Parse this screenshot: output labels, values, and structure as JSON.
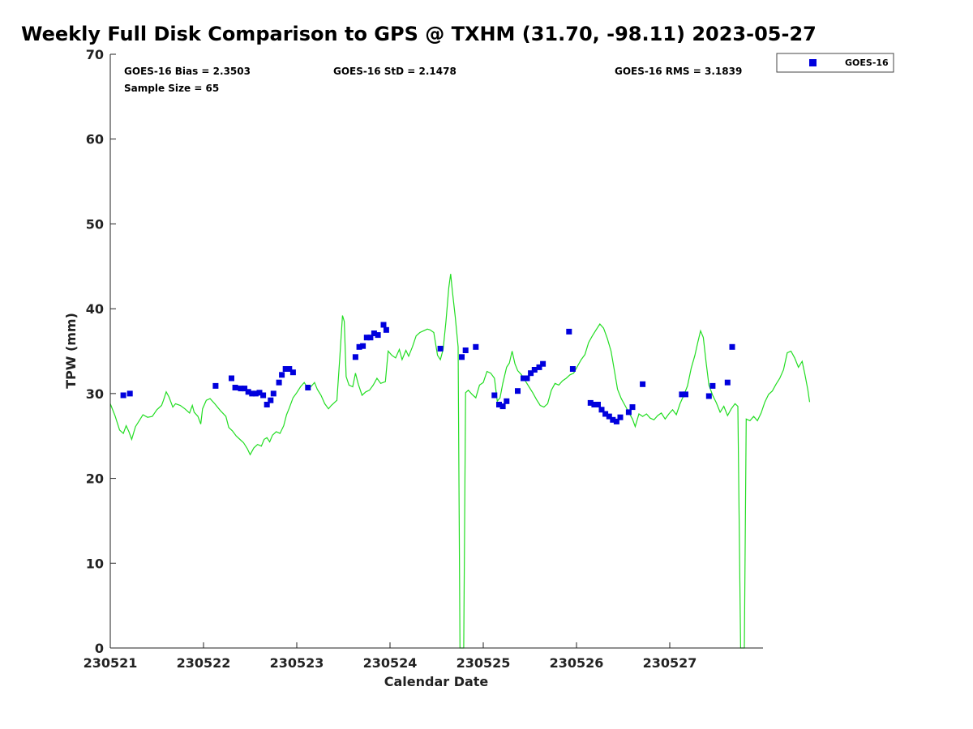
{
  "chart_data": {
    "type": "scatter",
    "title": "Weekly Full Disk Comparison to GPS @ TXHM (31.70, -98.11) 2023-05-27",
    "xlabel": "Calendar Date",
    "ylabel": "TPW (mm)",
    "xlim": [
      0,
      7
    ],
    "ylim": [
      0,
      70
    ],
    "x_ticks": [
      {
        "value": 0,
        "label": "230521"
      },
      {
        "value": 1,
        "label": "230522"
      },
      {
        "value": 2,
        "label": "230523"
      },
      {
        "value": 3,
        "label": "230524"
      },
      {
        "value": 4,
        "label": "230525"
      },
      {
        "value": 5,
        "label": "230526"
      },
      {
        "value": 6,
        "label": "230527"
      }
    ],
    "y_ticks": [
      0,
      10,
      20,
      30,
      40,
      50,
      60,
      70
    ],
    "grid": false,
    "legend": {
      "position": "outside-top-right",
      "entries": [
        "GOES-16"
      ]
    },
    "stats": {
      "bias": "GOES-16 Bias = 2.3503",
      "std": "GOES-16 StD = 2.1478",
      "rms": "GOES-16 RMS = 3.1839",
      "sample": "Sample Size = 65"
    },
    "series": [
      {
        "name": "GOES-16",
        "kind": "scatter",
        "color": "#0000dd",
        "points": [
          [
            0.14,
            29.8
          ],
          [
            0.21,
            30.0
          ],
          [
            1.13,
            30.9
          ],
          [
            1.3,
            31.8
          ],
          [
            1.34,
            30.7
          ],
          [
            1.4,
            30.6
          ],
          [
            1.44,
            30.6
          ],
          [
            1.48,
            30.2
          ],
          [
            1.52,
            30.0
          ],
          [
            1.56,
            30.0
          ],
          [
            1.6,
            30.1
          ],
          [
            1.64,
            29.8
          ],
          [
            1.68,
            28.7
          ],
          [
            1.72,
            29.2
          ],
          [
            1.75,
            30.0
          ],
          [
            1.81,
            31.3
          ],
          [
            1.84,
            32.2
          ],
          [
            1.88,
            32.9
          ],
          [
            1.92,
            32.9
          ],
          [
            1.96,
            32.5
          ],
          [
            2.12,
            30.7
          ],
          [
            2.63,
            34.3
          ],
          [
            2.67,
            35.5
          ],
          [
            2.71,
            35.6
          ],
          [
            2.75,
            36.6
          ],
          [
            2.79,
            36.6
          ],
          [
            2.83,
            37.1
          ],
          [
            2.87,
            36.9
          ],
          [
            2.93,
            38.1
          ],
          [
            2.96,
            37.5
          ],
          [
            3.54,
            35.3
          ],
          [
            3.77,
            34.3
          ],
          [
            3.81,
            35.1
          ],
          [
            3.92,
            35.5
          ],
          [
            4.12,
            29.8
          ],
          [
            4.17,
            28.7
          ],
          [
            4.21,
            28.5
          ],
          [
            4.25,
            29.1
          ],
          [
            4.37,
            30.3
          ],
          [
            4.43,
            31.8
          ],
          [
            4.47,
            31.8
          ],
          [
            4.51,
            32.4
          ],
          [
            4.55,
            32.8
          ],
          [
            4.6,
            33.1
          ],
          [
            4.64,
            33.5
          ],
          [
            4.92,
            37.3
          ],
          [
            4.96,
            32.9
          ],
          [
            5.15,
            28.9
          ],
          [
            5.19,
            28.7
          ],
          [
            5.23,
            28.7
          ],
          [
            5.27,
            28.1
          ],
          [
            5.31,
            27.6
          ],
          [
            5.35,
            27.3
          ],
          [
            5.39,
            26.9
          ],
          [
            5.43,
            26.7
          ],
          [
            5.47,
            27.2
          ],
          [
            5.56,
            27.8
          ],
          [
            5.6,
            28.4
          ],
          [
            5.71,
            31.1
          ],
          [
            6.13,
            29.9
          ],
          [
            6.17,
            29.9
          ],
          [
            6.42,
            29.7
          ],
          [
            6.46,
            30.9
          ],
          [
            6.62,
            31.3
          ],
          [
            6.67,
            35.5
          ]
        ]
      },
      {
        "name": "GPS",
        "kind": "line",
        "color": "#22dd22",
        "points": [
          [
            0.0,
            28.8
          ],
          [
            0.05,
            27.4
          ],
          [
            0.1,
            25.7
          ],
          [
            0.14,
            25.3
          ],
          [
            0.17,
            26.2
          ],
          [
            0.2,
            25.5
          ],
          [
            0.23,
            24.6
          ],
          [
            0.27,
            26.1
          ],
          [
            0.31,
            26.8
          ],
          [
            0.35,
            27.5
          ],
          [
            0.4,
            27.2
          ],
          [
            0.45,
            27.3
          ],
          [
            0.5,
            28.1
          ],
          [
            0.55,
            28.6
          ],
          [
            0.57,
            29.2
          ],
          [
            0.6,
            30.2
          ],
          [
            0.63,
            29.6
          ],
          [
            0.67,
            28.4
          ],
          [
            0.7,
            28.8
          ],
          [
            0.75,
            28.6
          ],
          [
            0.8,
            28.2
          ],
          [
            0.85,
            27.7
          ],
          [
            0.88,
            28.6
          ],
          [
            0.9,
            27.8
          ],
          [
            0.94,
            27.3
          ],
          [
            0.97,
            26.4
          ],
          [
            0.99,
            28.2
          ],
          [
            1.03,
            29.2
          ],
          [
            1.07,
            29.4
          ],
          [
            1.12,
            28.8
          ],
          [
            1.18,
            28.0
          ],
          [
            1.24,
            27.3
          ],
          [
            1.27,
            26.0
          ],
          [
            1.31,
            25.6
          ],
          [
            1.35,
            25.0
          ],
          [
            1.4,
            24.5
          ],
          [
            1.43,
            24.2
          ],
          [
            1.47,
            23.5
          ],
          [
            1.5,
            22.8
          ],
          [
            1.54,
            23.6
          ],
          [
            1.58,
            24.0
          ],
          [
            1.62,
            23.8
          ],
          [
            1.65,
            24.6
          ],
          [
            1.68,
            24.8
          ],
          [
            1.71,
            24.3
          ],
          [
            1.74,
            25.1
          ],
          [
            1.78,
            25.5
          ],
          [
            1.82,
            25.3
          ],
          [
            1.86,
            26.2
          ],
          [
            1.89,
            27.5
          ],
          [
            1.92,
            28.3
          ],
          [
            1.96,
            29.5
          ],
          [
            2.0,
            30.1
          ],
          [
            2.04,
            30.8
          ],
          [
            2.08,
            31.3
          ],
          [
            2.12,
            30.6
          ],
          [
            2.15,
            30.8
          ],
          [
            2.19,
            31.3
          ],
          [
            2.22,
            30.5
          ],
          [
            2.26,
            29.8
          ],
          [
            2.3,
            28.8
          ],
          [
            2.34,
            28.2
          ],
          [
            2.37,
            28.6
          ],
          [
            2.4,
            28.9
          ],
          [
            2.43,
            29.2
          ],
          [
            2.46,
            34.0
          ],
          [
            2.49,
            39.2
          ],
          [
            2.51,
            38.5
          ],
          [
            2.53,
            32.0
          ],
          [
            2.56,
            31.0
          ],
          [
            2.6,
            30.8
          ],
          [
            2.63,
            32.4
          ],
          [
            2.66,
            31.1
          ],
          [
            2.7,
            29.8
          ],
          [
            2.74,
            30.2
          ],
          [
            2.78,
            30.4
          ],
          [
            2.82,
            31.0
          ],
          [
            2.86,
            31.8
          ],
          [
            2.9,
            31.2
          ],
          [
            2.95,
            31.4
          ],
          [
            2.98,
            35.0
          ],
          [
            3.02,
            34.5
          ],
          [
            3.06,
            34.2
          ],
          [
            3.1,
            35.2
          ],
          [
            3.13,
            34.0
          ],
          [
            3.17,
            35.1
          ],
          [
            3.2,
            34.4
          ],
          [
            3.24,
            35.5
          ],
          [
            3.28,
            36.8
          ],
          [
            3.32,
            37.2
          ],
          [
            3.36,
            37.4
          ],
          [
            3.4,
            37.6
          ],
          [
            3.43,
            37.5
          ],
          [
            3.47,
            37.2
          ],
          [
            3.51,
            34.5
          ],
          [
            3.54,
            34.0
          ],
          [
            3.57,
            35.2
          ],
          [
            3.6,
            38.5
          ],
          [
            3.63,
            42.5
          ],
          [
            3.65,
            44.1
          ],
          [
            3.67,
            42.0
          ],
          [
            3.7,
            39.0
          ],
          [
            3.73,
            35.5
          ],
          [
            3.75,
            0.0
          ],
          [
            3.79,
            0.0
          ],
          [
            3.81,
            30.1
          ],
          [
            3.84,
            30.4
          ],
          [
            3.88,
            29.9
          ],
          [
            3.92,
            29.5
          ],
          [
            3.96,
            31.0
          ],
          [
            4.0,
            31.3
          ],
          [
            4.04,
            32.6
          ],
          [
            4.08,
            32.4
          ],
          [
            4.12,
            31.8
          ],
          [
            4.15,
            29.1
          ],
          [
            4.18,
            29.5
          ],
          [
            4.21,
            31.2
          ],
          [
            4.25,
            33.1
          ],
          [
            4.28,
            33.6
          ],
          [
            4.31,
            35.0
          ],
          [
            4.34,
            33.5
          ],
          [
            4.37,
            32.7
          ],
          [
            4.41,
            32.2
          ],
          [
            4.45,
            31.5
          ],
          [
            4.49,
            30.8
          ],
          [
            4.53,
            30.1
          ],
          [
            4.57,
            29.3
          ],
          [
            4.61,
            28.6
          ],
          [
            4.65,
            28.4
          ],
          [
            4.69,
            28.8
          ],
          [
            4.73,
            30.4
          ],
          [
            4.77,
            31.2
          ],
          [
            4.81,
            31.0
          ],
          [
            4.85,
            31.5
          ],
          [
            4.89,
            31.8
          ],
          [
            4.93,
            32.2
          ],
          [
            4.97,
            32.4
          ],
          [
            5.01,
            33.2
          ],
          [
            5.05,
            34.0
          ],
          [
            5.09,
            34.6
          ],
          [
            5.13,
            36.0
          ],
          [
            5.17,
            36.8
          ],
          [
            5.21,
            37.5
          ],
          [
            5.25,
            38.2
          ],
          [
            5.29,
            37.7
          ],
          [
            5.33,
            36.5
          ],
          [
            5.37,
            35.0
          ],
          [
            5.41,
            32.5
          ],
          [
            5.44,
            30.5
          ],
          [
            5.48,
            29.4
          ],
          [
            5.52,
            28.6
          ],
          [
            5.56,
            27.8
          ],
          [
            5.6,
            27.0
          ],
          [
            5.63,
            26.1
          ],
          [
            5.67,
            27.6
          ],
          [
            5.71,
            27.3
          ],
          [
            5.75,
            27.6
          ],
          [
            5.79,
            27.1
          ],
          [
            5.83,
            26.9
          ],
          [
            5.87,
            27.4
          ],
          [
            5.91,
            27.7
          ],
          [
            5.95,
            27.0
          ],
          [
            5.99,
            27.6
          ],
          [
            6.03,
            28.1
          ],
          [
            6.07,
            27.5
          ],
          [
            6.11,
            28.8
          ],
          [
            6.15,
            29.8
          ],
          [
            6.19,
            30.9
          ],
          [
            6.23,
            33.0
          ],
          [
            6.27,
            34.5
          ],
          [
            6.3,
            36.0
          ],
          [
            6.33,
            37.4
          ],
          [
            6.36,
            36.6
          ],
          [
            6.39,
            33.7
          ],
          [
            6.42,
            31.0
          ],
          [
            6.46,
            29.8
          ],
          [
            6.5,
            28.9
          ],
          [
            6.54,
            27.8
          ],
          [
            6.58,
            28.5
          ],
          [
            6.62,
            27.4
          ],
          [
            6.66,
            28.2
          ],
          [
            6.7,
            28.8
          ],
          [
            6.73,
            28.5
          ],
          [
            6.76,
            0.0
          ],
          [
            6.8,
            0.0
          ],
          [
            6.82,
            27.0
          ],
          [
            6.86,
            26.8
          ],
          [
            6.9,
            27.3
          ],
          [
            6.94,
            26.8
          ],
          [
            6.98,
            27.7
          ],
          [
            7.02,
            29.0
          ],
          [
            7.06,
            29.9
          ],
          [
            7.1,
            30.3
          ],
          [
            7.14,
            31.1
          ],
          [
            7.18,
            31.8
          ],
          [
            7.22,
            32.8
          ],
          [
            7.26,
            34.8
          ],
          [
            7.3,
            35.0
          ],
          [
            7.34,
            34.2
          ],
          [
            7.38,
            33.1
          ],
          [
            7.42,
            33.8
          ],
          [
            7.45,
            32.2
          ],
          [
            7.48,
            30.5
          ],
          [
            7.5,
            29.0
          ]
        ]
      }
    ]
  }
}
